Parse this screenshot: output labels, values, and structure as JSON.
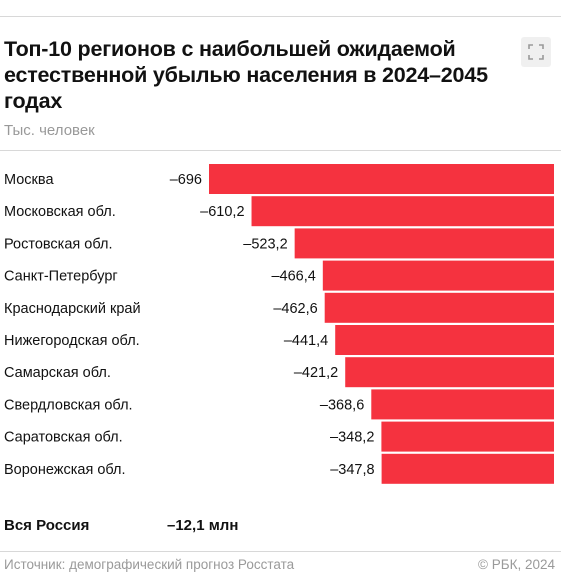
{
  "title": "Топ-10 регионов с наибольшей ожидаемой естественной убылью населения в 2024–2045 годах",
  "subtitle": "Тыс. человек",
  "icons": {
    "expand": "expand-icon"
  },
  "chart_data": {
    "type": "bar",
    "orientation": "horizontal",
    "categories": [
      "Москва",
      "Московская обл.",
      "Ростовская обл.",
      "Санкт-Петербург",
      "Краснодарский край",
      "Нижегородская обл.",
      "Самарская обл.",
      "Свердловская обл.",
      "Саратовская обл.",
      "Воронежская обл."
    ],
    "values": [
      -696,
      -610.2,
      -523.2,
      -466.4,
      -462.6,
      -441.4,
      -421.2,
      -368.6,
      -348.2,
      -347.8
    ],
    "value_labels": [
      "–696",
      "–610,2",
      "–523,2",
      "–466,4",
      "–462,6",
      "–441,4",
      "–421,2",
      "–368,6",
      "–348,2",
      "–347,8"
    ],
    "title": "Топ-10 регионов с наибольшей ожидаемой естественной убылью населения в 2024–2045 годах",
    "xlabel": "",
    "ylabel": "Тыс. человек",
    "xlim": [
      -696,
      0
    ],
    "grid": false,
    "bar_color": "#f5323f"
  },
  "total": {
    "label": "Вся Россия",
    "value": "–12,1 млн"
  },
  "source": "Источник: демографический прогноз Росстата",
  "copyright": "© РБК, 2024"
}
